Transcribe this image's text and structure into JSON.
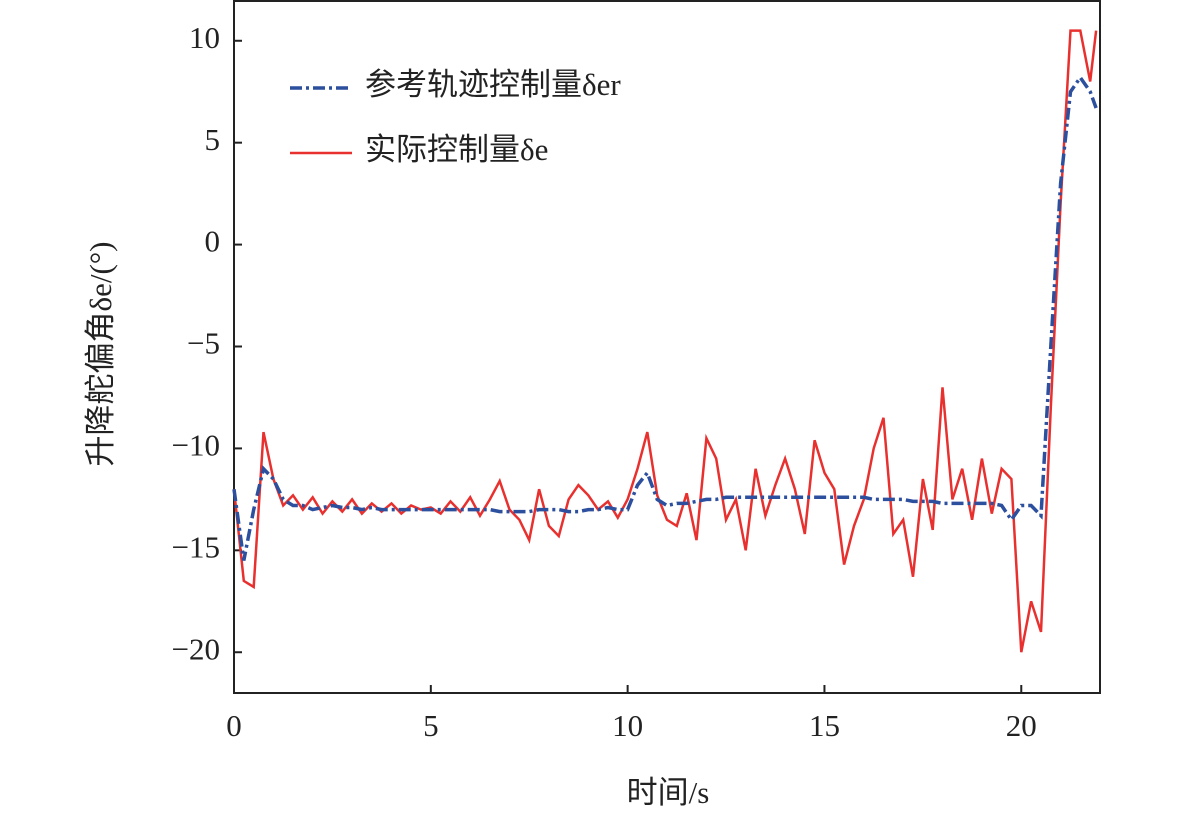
{
  "chart_data": {
    "type": "line",
    "xlabel": "时间/s",
    "ylabel": "升降舵偏角δe/(°)",
    "xlim": [
      0,
      22
    ],
    "xticks": [
      0,
      5,
      10,
      15,
      20
    ],
    "ylim": [
      -22,
      12
    ],
    "yticks": [
      {
        "value": -20,
        "label": "−20"
      },
      {
        "value": -15,
        "label": "−15"
      },
      {
        "value": -10,
        "label": "−10"
      },
      {
        "value": -5,
        "label": "−5"
      },
      0,
      5,
      10
    ],
    "legend": "upper left",
    "x": [
      0,
      0.25,
      0.5,
      0.75,
      1,
      1.25,
      1.5,
      1.75,
      2,
      2.25,
      2.5,
      2.75,
      3,
      3.25,
      3.5,
      3.75,
      4,
      4.25,
      4.5,
      4.75,
      5,
      5.25,
      5.5,
      5.75,
      6,
      6.25,
      6.5,
      6.75,
      7,
      7.25,
      7.5,
      7.75,
      8,
      8.25,
      8.5,
      8.75,
      9,
      9.25,
      9.5,
      9.75,
      10,
      10.25,
      10.5,
      10.75,
      11,
      11.25,
      11.5,
      11.75,
      12,
      12.25,
      12.5,
      12.75,
      13,
      13.25,
      13.5,
      13.75,
      14,
      14.25,
      14.5,
      14.75,
      15,
      15.25,
      15.5,
      15.75,
      16,
      16.25,
      16.5,
      16.75,
      17,
      17.25,
      17.5,
      17.75,
      18,
      18.25,
      18.5,
      18.75,
      19,
      19.25,
      19.5,
      19.75,
      20,
      20.25,
      20.5,
      20.75,
      21,
      21.25,
      21.5,
      21.75,
      21.9
    ],
    "series": [
      {
        "name": "参考轨迹控制量δer",
        "color": "#2c4f9e",
        "linestyle": "dashdot",
        "values": [
          -12,
          -15.5,
          -13,
          -11,
          -11.5,
          -12.5,
          -12.8,
          -12.8,
          -13,
          -12.9,
          -12.8,
          -12.9,
          -12.9,
          -13,
          -12.9,
          -13,
          -13,
          -13,
          -13,
          -13,
          -13,
          -13,
          -13,
          -13,
          -13,
          -13,
          -13,
          -13.1,
          -13.1,
          -13.1,
          -13.1,
          -13,
          -13,
          -13,
          -13.1,
          -13.1,
          -13,
          -13,
          -12.9,
          -13,
          -13,
          -11.8,
          -11.2,
          -12.5,
          -12.8,
          -12.7,
          -12.7,
          -12.6,
          -12.5,
          -12.5,
          -12.4,
          -12.4,
          -12.4,
          -12.4,
          -12.4,
          -12.4,
          -12.4,
          -12.4,
          -12.4,
          -12.4,
          -12.4,
          -12.4,
          -12.4,
          -12.4,
          -12.4,
          -12.5,
          -12.5,
          -12.5,
          -12.5,
          -12.6,
          -12.6,
          -12.6,
          -12.7,
          -12.7,
          -12.7,
          -12.7,
          -12.7,
          -12.7,
          -12.8,
          -13.5,
          -12.8,
          -12.8,
          -13.3,
          -5,
          3,
          7.5,
          8.2,
          7.5,
          6.7
        ]
      },
      {
        "name": "实际控制量δe",
        "color": "#e8312f",
        "linestyle": "solid",
        "values": [
          -12,
          -16.5,
          -16.8,
          -9.2,
          -11.5,
          -12.8,
          -12.3,
          -13,
          -12.4,
          -13.2,
          -12.6,
          -13.1,
          -12.5,
          -13.2,
          -12.7,
          -13.1,
          -12.7,
          -13.2,
          -12.8,
          -13,
          -12.9,
          -13.2,
          -12.6,
          -13.1,
          -12.4,
          -13.3,
          -12.5,
          -11.6,
          -13,
          -13.5,
          -14.5,
          -12,
          -13.8,
          -14.3,
          -12.5,
          -11.8,
          -12.3,
          -13,
          -12.6,
          -13.4,
          -12.5,
          -11,
          -9.2,
          -12.3,
          -13.5,
          -13.8,
          -12.2,
          -14.5,
          -9.5,
          -10.5,
          -13.5,
          -12.5,
          -15,
          -11,
          -13.3,
          -11.8,
          -10.5,
          -12,
          -14.2,
          -9.6,
          -11.2,
          -12,
          -15.7,
          -13.8,
          -12.5,
          -10,
          -8.5,
          -14.2,
          -13.5,
          -16.3,
          -11.5,
          -14,
          -7,
          -12.5,
          -11,
          -13.5,
          -10.5,
          -13.2,
          -11,
          -11.5,
          -20,
          -17.5,
          -19,
          -8,
          2,
          10.5,
          10.5,
          8,
          10.5
        ]
      }
    ]
  }
}
